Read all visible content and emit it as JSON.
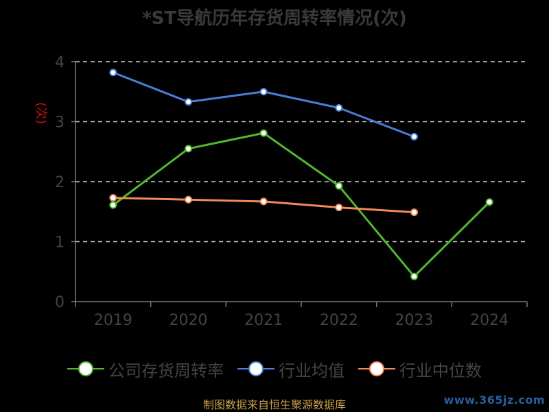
{
  "colors": {
    "company": "#52b82e",
    "industry_avg": "#4a7fd9",
    "industry_median": "#f28a5a",
    "ylabel": "#cc1111",
    "axis": "#7a7a7a",
    "grid": "#cccccc"
  },
  "source_text": "制图数据来自恒生聚源数据库",
  "watermark_text": "www.365jz.com",
  "chart_data": {
    "type": "line",
    "title": "*ST导航历年存货周转率情况(次)",
    "ylabel": "(次)",
    "xlabel": "",
    "categories": [
      "2019",
      "2020",
      "2021",
      "2022",
      "2023",
      "2024"
    ],
    "ylim": [
      0,
      4
    ],
    "yticks": [
      0,
      1,
      2,
      3,
      4
    ],
    "grid": true,
    "legend_position": "bottom",
    "series": [
      {
        "name": "公司存货周转率",
        "color": "#52b82e",
        "values": [
          1.61,
          2.55,
          2.81,
          1.93,
          0.42,
          1.66
        ]
      },
      {
        "name": "行业均值",
        "color": "#4a7fd9",
        "values": [
          3.82,
          3.33,
          3.5,
          3.23,
          2.75,
          null
        ]
      },
      {
        "name": "行业中位数",
        "color": "#f28a5a",
        "values": [
          1.73,
          1.7,
          1.67,
          1.57,
          1.49,
          null
        ]
      }
    ]
  }
}
